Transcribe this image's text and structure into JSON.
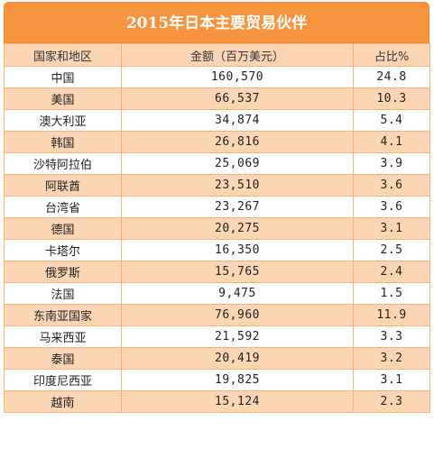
{
  "table": {
    "title": "2015年日本主要贸易伙伴",
    "headers": {
      "region": "国家和地区",
      "amount": "金额（百万美元）",
      "share": "占比%"
    },
    "rows": [
      {
        "region": "中国",
        "amount": "160,570",
        "share": "24.8"
      },
      {
        "region": "美国",
        "amount": "66,537",
        "share": "10.3"
      },
      {
        "region": "澳大利亚",
        "amount": "34,874",
        "share": "5.4"
      },
      {
        "region": "韩国",
        "amount": "26,816",
        "share": "4.1"
      },
      {
        "region": "沙特阿拉伯",
        "amount": "25,069",
        "share": "3.9"
      },
      {
        "region": "阿联酋",
        "amount": "23,510",
        "share": "3.6"
      },
      {
        "region": "台湾省",
        "amount": "23,267",
        "share": "3.6"
      },
      {
        "region": "德国",
        "amount": "20,275",
        "share": "3.1"
      },
      {
        "region": "卡塔尔",
        "amount": "16,350",
        "share": "2.5"
      },
      {
        "region": "俄罗斯",
        "amount": "15,765",
        "share": "2.4"
      },
      {
        "region": "法国",
        "amount": "9,475",
        "share": "1.5"
      },
      {
        "region": "东南亚国家",
        "amount": "76,960",
        "share": "11.9"
      },
      {
        "region": "马来西亚",
        "amount": "21,592",
        "share": "3.3"
      },
      {
        "region": "泰国",
        "amount": "20,419",
        "share": "3.2"
      },
      {
        "region": "印度尼西亚",
        "amount": "19,825",
        "share": "3.1"
      },
      {
        "region": "越南",
        "amount": "15,124",
        "share": "2.3"
      }
    ]
  },
  "colors": {
    "title_bg": "#f7923e",
    "row_peach": "#fcd6b4",
    "row_white": "#ffffff",
    "border": "#f2b27a"
  }
}
